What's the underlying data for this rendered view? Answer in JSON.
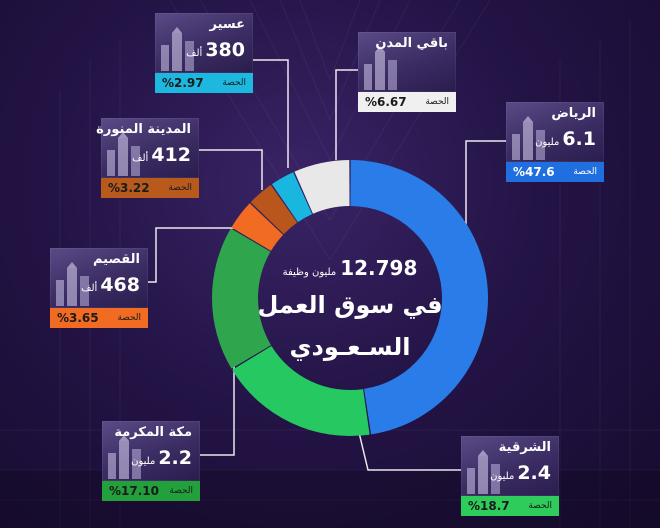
{
  "chart_data": {
    "type": "pie",
    "style": "donut",
    "center": {
      "total_value": "12.798",
      "total_unit": "مليون وظيفة",
      "title_line1": "في سوق العمل",
      "title_line2": "السـعـودي"
    },
    "share_label": "الحصة",
    "slices": [
      {
        "key": "riyadh",
        "name": "الرياض",
        "value": "6.1",
        "unit": "مليون",
        "share": "%47.6",
        "share_num": 47.6,
        "color": "#2a7de8",
        "badge_color": "#1f6fe0",
        "badge_text": "#ffffff"
      },
      {
        "key": "eastern",
        "name": "الشرقية",
        "value": "2.4",
        "unit": "مليون",
        "share": "%18.7",
        "share_num": 18.7,
        "color": "#25c861",
        "badge_color": "#2ecc5a",
        "badge_text": "#1b1b1b"
      },
      {
        "key": "makkah",
        "name": "مكة المكرمة",
        "value": "2.2",
        "unit": "مليون",
        "share": "%17.10",
        "share_num": 17.1,
        "color": "#2fa64e",
        "badge_color": "#22a03c",
        "badge_text": "#1b1b1b"
      },
      {
        "key": "qassim",
        "name": "القصيم",
        "value": "468",
        "unit": "ألف",
        "share": "%3.65",
        "share_num": 3.65,
        "color": "#f26b22",
        "badge_color": "#f26b22",
        "badge_text": "#1b1b1b"
      },
      {
        "key": "madinah",
        "name": "المدينة المنورة",
        "value": "412",
        "unit": "ألف",
        "share": "%3.22",
        "share_num": 3.22,
        "color": "#b8561b",
        "badge_color": "#b85a1c",
        "badge_text": "#1b1b1b"
      },
      {
        "key": "asir",
        "name": "عسير",
        "value": "380",
        "unit": "ألف",
        "share": "%2.97",
        "share_num": 2.97,
        "color": "#19b6e0",
        "badge_color": "#1cb8df",
        "badge_text": "#1b1b1b"
      },
      {
        "key": "others",
        "name": "باقي المدن",
        "value": "",
        "unit": "",
        "share": "%6.67",
        "share_num": 6.67,
        "color": "#e8e8e8",
        "badge_color": "#f0f0f0",
        "badge_text": "#1b1b1b"
      }
    ]
  }
}
